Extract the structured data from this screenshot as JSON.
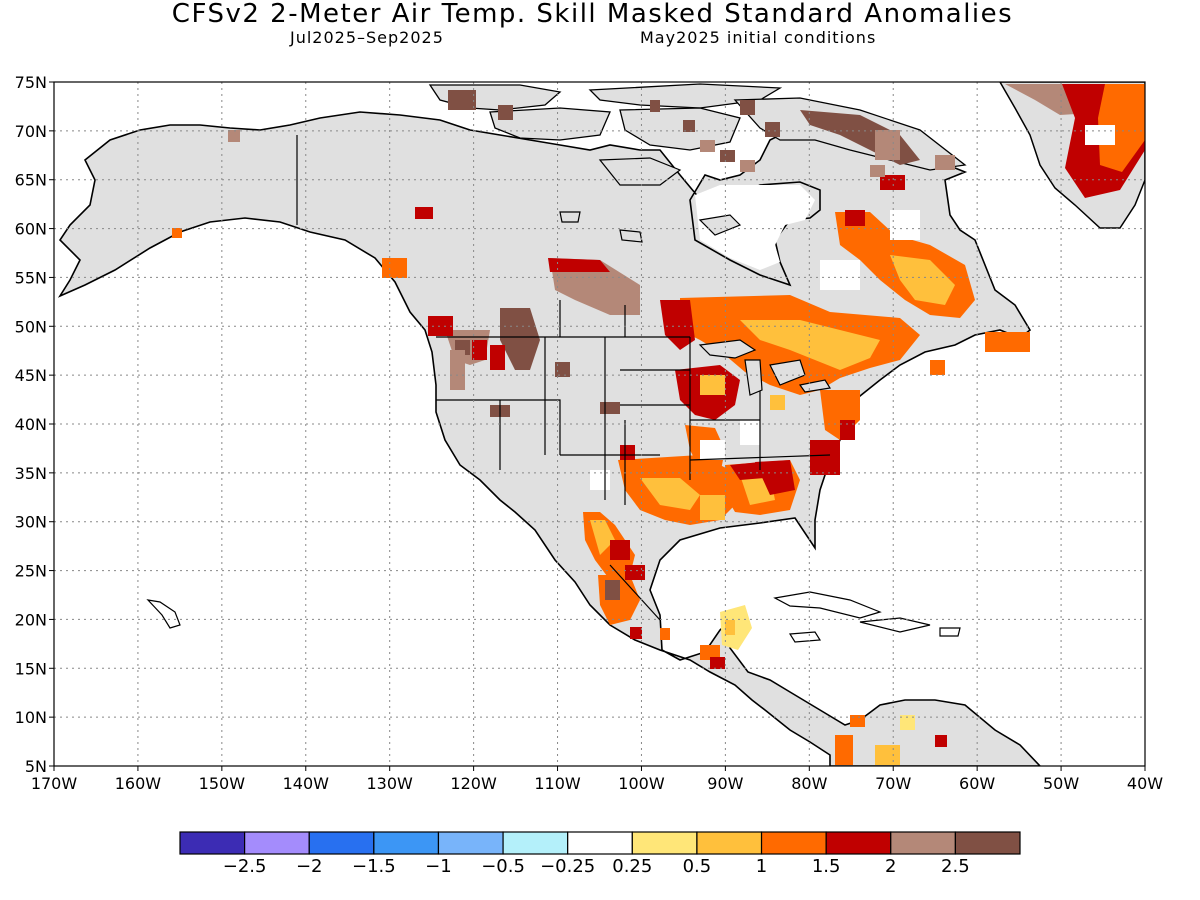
{
  "title": "CFSv2 2-Meter Air Temp. Skill Masked Standard Anomalies",
  "subtitle_left": "Jul2025–Sep2025",
  "subtitle_right": "May2025 initial conditions",
  "axes": {
    "lat_labels": [
      "75N",
      "70N",
      "65N",
      "60N",
      "55N",
      "50N",
      "45N",
      "40N",
      "35N",
      "30N",
      "25N",
      "20N",
      "15N",
      "10N",
      "5N"
    ],
    "lon_labels": [
      "170W",
      "160W",
      "150W",
      "140W",
      "130W",
      "120W",
      "110W",
      "100W",
      "90W",
      "80W",
      "70W",
      "60W",
      "50W",
      "40W"
    ],
    "grid": "dotted"
  },
  "colorbar": {
    "colors": [
      "#3c2cb4",
      "#a48cfc",
      "#2870f0",
      "#3c96f5",
      "#78b4fa",
      "#b4f0fa",
      "#ffffff",
      "#ffe678",
      "#ffc03c",
      "#ff6a00",
      "#c00000",
      "#b48878",
      "#805044"
    ],
    "labels": [
      "−2.5",
      "−2",
      "−1.5",
      "−1",
      "−0.5",
      "−0.25",
      "0.25",
      "0.5",
      "1",
      "1.5",
      "2",
      "2.5"
    ]
  },
  "map_colors": {
    "masked": "#e0e0e0",
    "land_outline": "#000000"
  }
}
